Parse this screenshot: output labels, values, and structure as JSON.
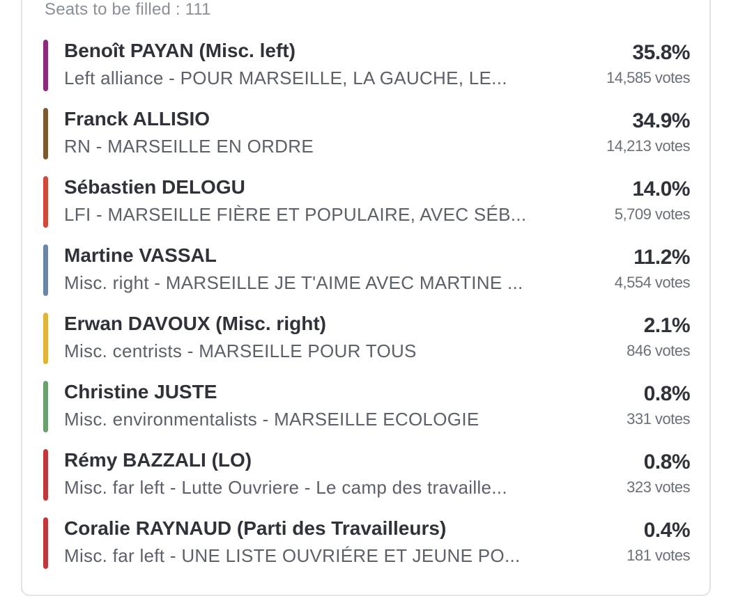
{
  "header": {
    "seats_label": "Seats to be filled : 111"
  },
  "candidates": [
    {
      "name": "Benoît PAYAN (Misc. left)",
      "party": "Left alliance - POUR MARSEILLE, LA GAUCHE, LE...",
      "percent": "35.8%",
      "votes": "14,585 votes",
      "color": "#8e2a7d"
    },
    {
      "name": "Franck ALLISIO",
      "party": "RN - MARSEILLE EN ORDRE",
      "percent": "34.9%",
      "votes": "14,213 votes",
      "color": "#7a5a2e"
    },
    {
      "name": "Sébastien DELOGU",
      "party": "LFI - MARSEILLE FIÈRE ET POPULAIRE, AVEC SÉB...",
      "percent": "14.0%",
      "votes": "5,709 votes",
      "color": "#d2493b"
    },
    {
      "name": "Martine VASSAL",
      "party": "Misc. right - MARSEILLE JE T'AIME AVEC MARTINE ...",
      "percent": "11.2%",
      "votes": "4,554 votes",
      "color": "#6b84a8"
    },
    {
      "name": "Erwan DAVOUX (Misc. right)",
      "party": "Misc. centrists - MARSEILLE POUR TOUS",
      "percent": "2.1%",
      "votes": "846 votes",
      "color": "#e0b43a"
    },
    {
      "name": "Christine JUSTE",
      "party": "Misc. environmentalists - MARSEILLE ECOLOGIE",
      "percent": "0.8%",
      "votes": "331 votes",
      "color": "#6aa06e"
    },
    {
      "name": "Rémy BAZZALI (LO)",
      "party": "Misc. far left - Lutte Ouvriere - Le camp des travaille...",
      "percent": "0.8%",
      "votes": "323 votes",
      "color": "#c0393a"
    },
    {
      "name": "Coralie RAYNAUD (Parti des Travailleurs)",
      "party": "Misc. far left - UNE LISTE OUVRIÉRE ET JEUNE PO...",
      "percent": "0.4%",
      "votes": "181 votes",
      "color": "#c0393a"
    }
  ]
}
